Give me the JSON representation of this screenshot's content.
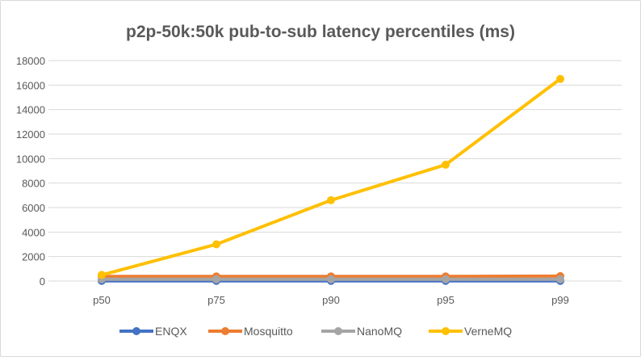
{
  "chart_data": {
    "type": "line",
    "title": "p2p-50k:50k pub-to-sub latency percentiles (ms)",
    "categories": [
      "p50",
      "p75",
      "p90",
      "p95",
      "p99"
    ],
    "ylim": [
      0,
      18000
    ],
    "yticks": [
      0,
      2000,
      4000,
      6000,
      8000,
      10000,
      12000,
      14000,
      16000,
      18000
    ],
    "grid": true,
    "legend": "bottom",
    "series": [
      {
        "name": "ENQX",
        "color": "#4472c4",
        "values": [
          20,
          20,
          20,
          20,
          20
        ]
      },
      {
        "name": "Mosquitto",
        "color": "#ed7d31",
        "values": [
          380,
          380,
          380,
          380,
          400
        ]
      },
      {
        "name": "NanoMQ",
        "color": "#a5a5a5",
        "values": [
          150,
          150,
          150,
          150,
          150
        ]
      },
      {
        "name": "VerneMQ",
        "color": "#ffc000",
        "values": [
          500,
          3000,
          6600,
          9500,
          16500
        ]
      }
    ]
  }
}
